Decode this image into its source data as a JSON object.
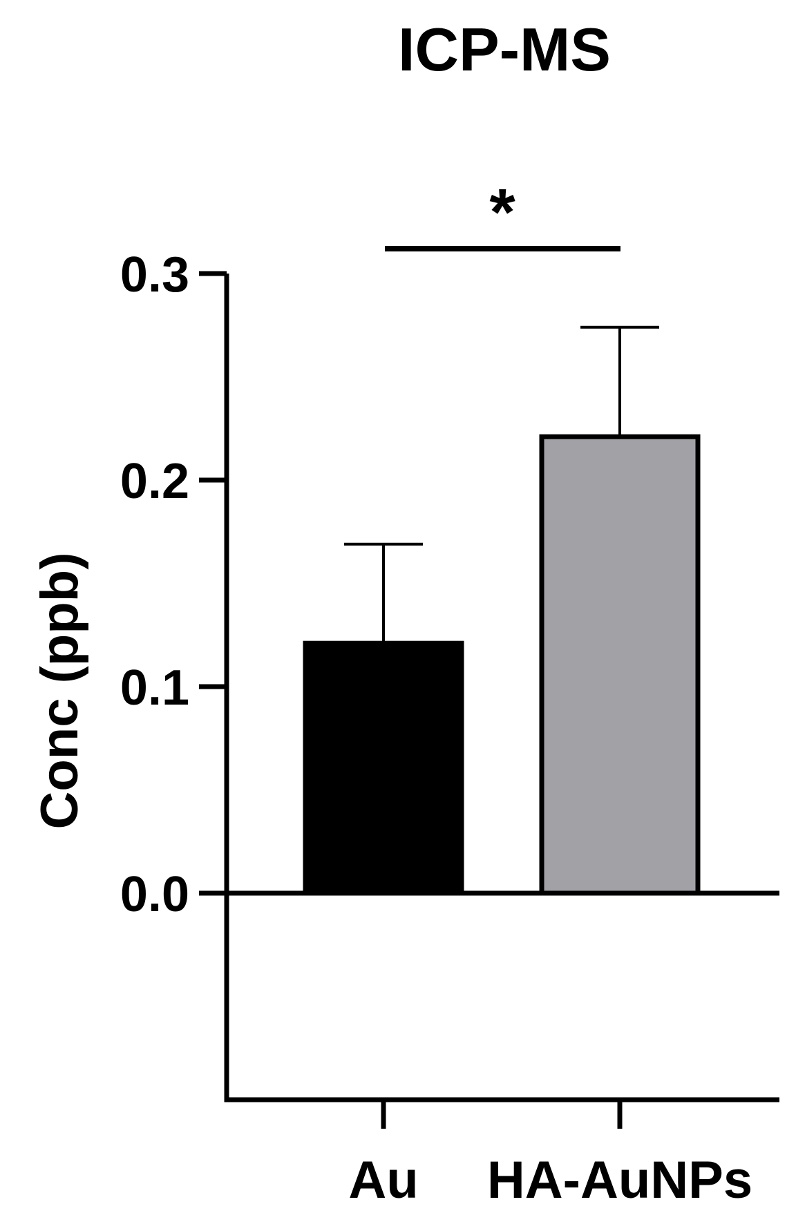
{
  "chart_data": {
    "type": "bar",
    "title": "ICP-MS",
    "ylabel": "Conc (ppb)",
    "xlabel": "",
    "categories": [
      "Au",
      "HA-AuNPs"
    ],
    "values": [
      0.121,
      0.221
    ],
    "errors": [
      0.048,
      0.053
    ],
    "colors": [
      "#000000",
      "#a2a1a6"
    ],
    "ylim": [
      -0.1,
      0.3
    ],
    "yticks": [
      0.0,
      0.1,
      0.2,
      0.3
    ],
    "ytick_labels": [
      "0.0",
      "0.1",
      "0.2",
      "0.3"
    ],
    "significance": {
      "label": "*",
      "between": [
        "Au",
        "HA-AuNPs"
      ]
    },
    "grid": false
  }
}
